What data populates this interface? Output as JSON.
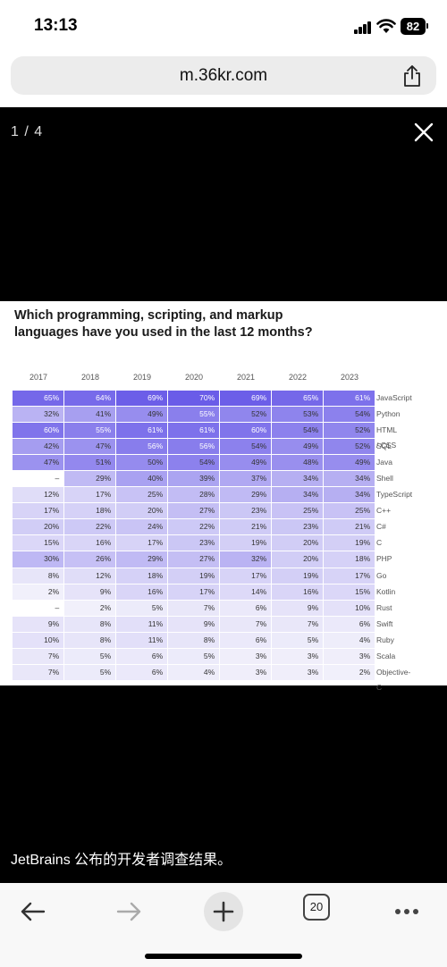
{
  "status": {
    "time": "13:13",
    "battery": "82"
  },
  "browser": {
    "url": "m.36kr.com",
    "tabs_count": "20"
  },
  "viewer": {
    "counter": "1 / 4",
    "caption": "JetBrains 公布的开发者调查结果。",
    "title_line1": "Which programming, scripting, and markup",
    "title_line2": "languages have you used in the last 12 months?",
    "years": [
      "2017",
      "2018",
      "2019",
      "2020",
      "2021",
      "2022",
      "2023"
    ],
    "rows": [
      {
        "lang": "JavaScript",
        "values": [
          "65%",
          "64%",
          "69%",
          "70%",
          "69%",
          "65%",
          "61%"
        ]
      },
      {
        "lang": "Python",
        "values": [
          "32%",
          "41%",
          "49%",
          "55%",
          "52%",
          "53%",
          "54%"
        ]
      },
      {
        "lang": "HTML / CSS",
        "values": [
          "60%",
          "55%",
          "61%",
          "61%",
          "60%",
          "54%",
          "52%"
        ]
      },
      {
        "lang": "SQL",
        "values": [
          "42%",
          "47%",
          "56%",
          "56%",
          "54%",
          "49%",
          "52%"
        ]
      },
      {
        "lang": "Java",
        "values": [
          "47%",
          "51%",
          "50%",
          "54%",
          "49%",
          "48%",
          "49%"
        ]
      },
      {
        "lang": "Shell",
        "values": [
          "–",
          "29%",
          "40%",
          "39%",
          "37%",
          "34%",
          "34%"
        ]
      },
      {
        "lang": "TypeScript",
        "values": [
          "12%",
          "17%",
          "25%",
          "28%",
          "29%",
          "34%",
          "34%"
        ]
      },
      {
        "lang": "C++",
        "values": [
          "17%",
          "18%",
          "20%",
          "27%",
          "23%",
          "25%",
          "25%"
        ]
      },
      {
        "lang": "C#",
        "values": [
          "20%",
          "22%",
          "24%",
          "22%",
          "21%",
          "23%",
          "21%"
        ]
      },
      {
        "lang": "C",
        "values": [
          "15%",
          "16%",
          "17%",
          "23%",
          "19%",
          "20%",
          "19%"
        ]
      },
      {
        "lang": "PHP",
        "values": [
          "30%",
          "26%",
          "29%",
          "27%",
          "32%",
          "20%",
          "18%"
        ]
      },
      {
        "lang": "Go",
        "values": [
          "8%",
          "12%",
          "18%",
          "19%",
          "17%",
          "19%",
          "17%"
        ]
      },
      {
        "lang": "Kotlin",
        "values": [
          "2%",
          "9%",
          "16%",
          "17%",
          "14%",
          "16%",
          "15%"
        ]
      },
      {
        "lang": "Rust",
        "values": [
          "–",
          "2%",
          "5%",
          "7%",
          "6%",
          "9%",
          "10%"
        ]
      },
      {
        "lang": "Swift",
        "values": [
          "9%",
          "8%",
          "11%",
          "9%",
          "7%",
          "7%",
          "6%"
        ]
      },
      {
        "lang": "Ruby",
        "values": [
          "10%",
          "8%",
          "11%",
          "8%",
          "6%",
          "5%",
          "4%"
        ]
      },
      {
        "lang": "Scala",
        "values": [
          "7%",
          "5%",
          "6%",
          "5%",
          "3%",
          "3%",
          "3%"
        ]
      },
      {
        "lang": "Objective-C",
        "values": [
          "7%",
          "5%",
          "6%",
          "4%",
          "3%",
          "3%",
          "2%"
        ]
      }
    ]
  },
  "colors": {
    "heat_high": "#6a5ce8",
    "heat_low": "#f3f2fb"
  },
  "toolbar": {
    "icons": [
      "back-arrow-icon",
      "forward-arrow-icon",
      "plus-icon",
      "tabs-icon",
      "more-icon"
    ]
  }
}
